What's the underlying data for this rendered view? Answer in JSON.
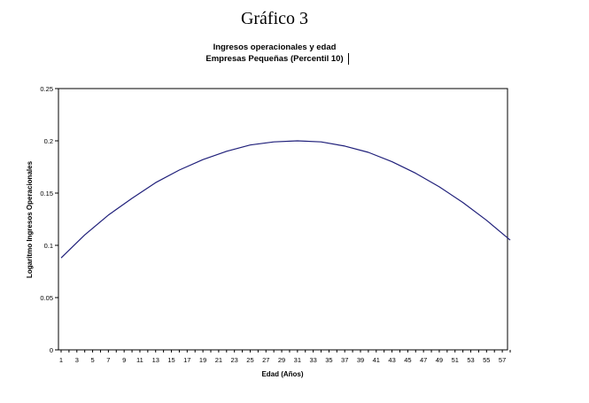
{
  "heading": "Gráfico 3",
  "chart_data": {
    "type": "line",
    "title": "Ingresos operacionales y edad",
    "subtitle": "Empresas Pequeñas (Percentil 10)",
    "xlabel": "Edad (Años)",
    "ylabel": "Logaritmo Ingresos Operacionales",
    "x_ticks": [
      1,
      3,
      5,
      7,
      9,
      11,
      13,
      15,
      17,
      19,
      21,
      23,
      25,
      27,
      29,
      31,
      33,
      35,
      37,
      39,
      41,
      43,
      45,
      47,
      49,
      51,
      53,
      55,
      57
    ],
    "y_ticks": [
      "0",
      "0.05",
      "0.1",
      "0.15",
      "0.2",
      "0.25"
    ],
    "xlim": [
      1,
      58
    ],
    "ylim": [
      0,
      0.25
    ],
    "grid": false,
    "legend": "none",
    "series": [
      {
        "color": "#1f1f7a",
        "x": [
          1,
          4,
          7,
          10,
          13,
          16,
          19,
          22,
          25,
          28,
          31,
          34,
          37,
          40,
          43,
          46,
          49,
          52,
          55,
          58
        ],
        "y": [
          0.088,
          0.11,
          0.129,
          0.145,
          0.16,
          0.172,
          0.182,
          0.19,
          0.196,
          0.199,
          0.2,
          0.199,
          0.195,
          0.189,
          0.18,
          0.169,
          0.156,
          0.141,
          0.124,
          0.105
        ]
      }
    ]
  }
}
